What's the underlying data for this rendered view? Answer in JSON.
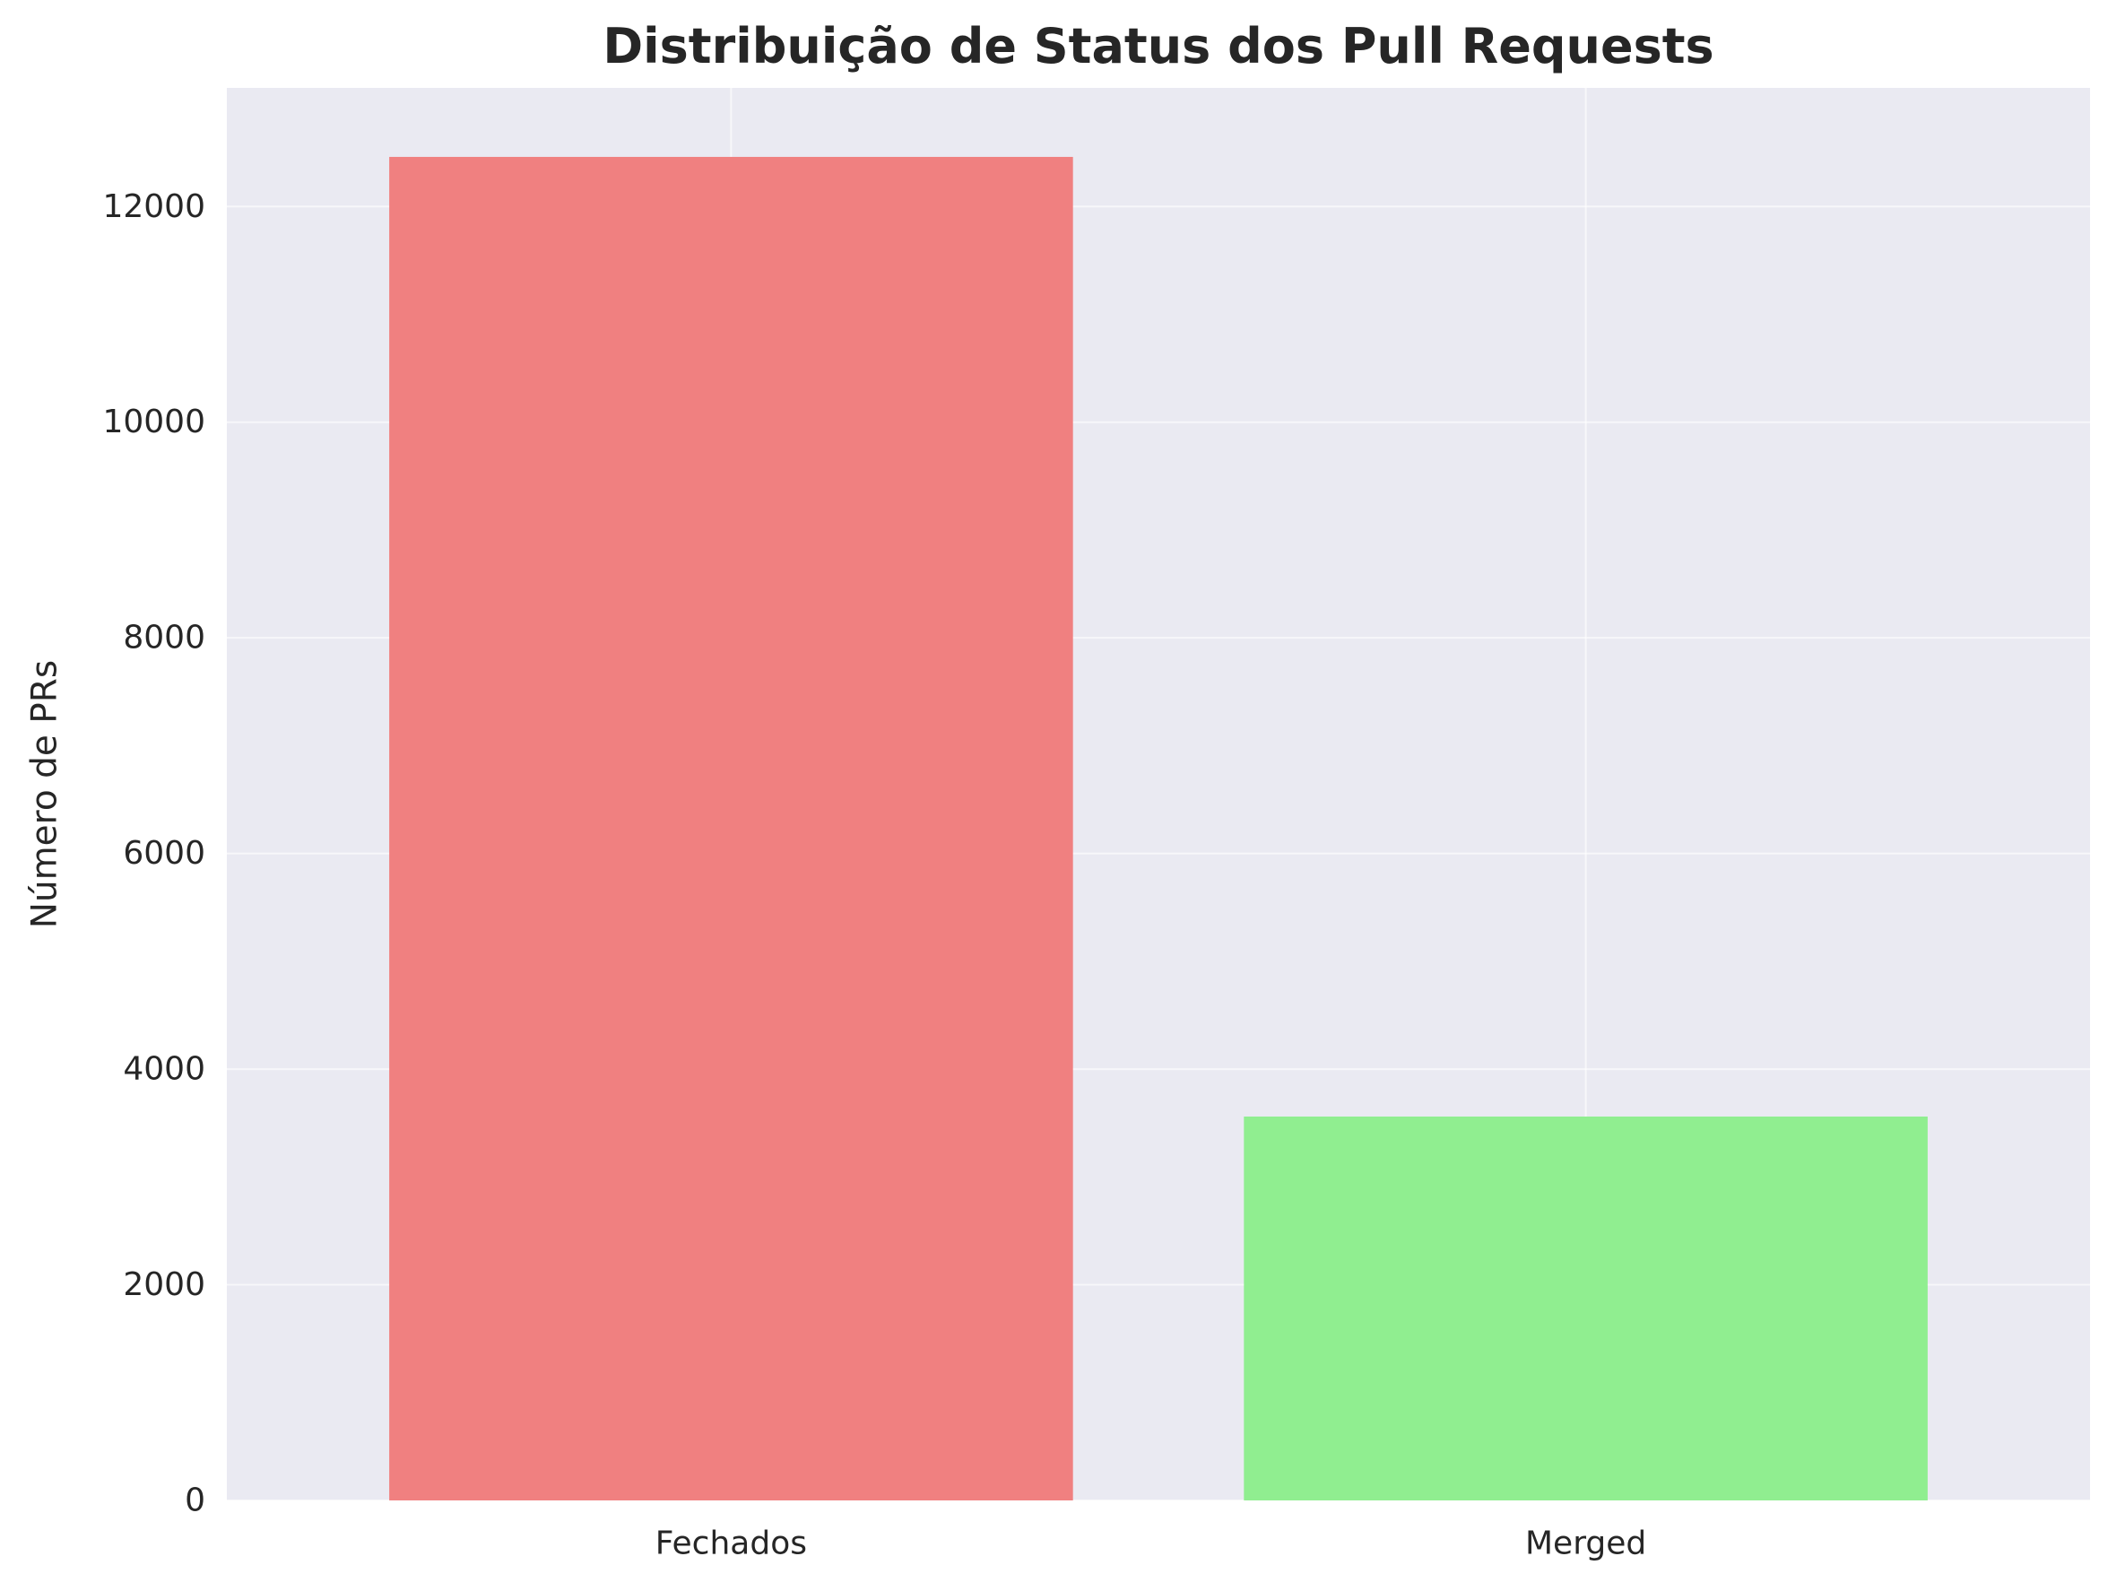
{
  "chart_data": {
    "type": "bar",
    "title": "Distribuição de Status dos Pull Requests",
    "xlabel": "",
    "ylabel": "Número de PRs",
    "categories": [
      "Fechados",
      "Merged"
    ],
    "values": [
      12460,
      3560
    ],
    "bar_colors": [
      "#f08080",
      "#90ee90"
    ],
    "ylim": [
      0,
      13100
    ],
    "yticks": [
      0,
      2000,
      4000,
      6000,
      8000,
      10000,
      12000
    ],
    "ytick_labels": [
      "0",
      "2000",
      "4000",
      "6000",
      "8000",
      "10000",
      "12000"
    ],
    "grid": true,
    "legend": "none",
    "colors": {
      "plot_background": "#eaeaf2",
      "grid": "#ffffff",
      "text": "#262626"
    }
  }
}
